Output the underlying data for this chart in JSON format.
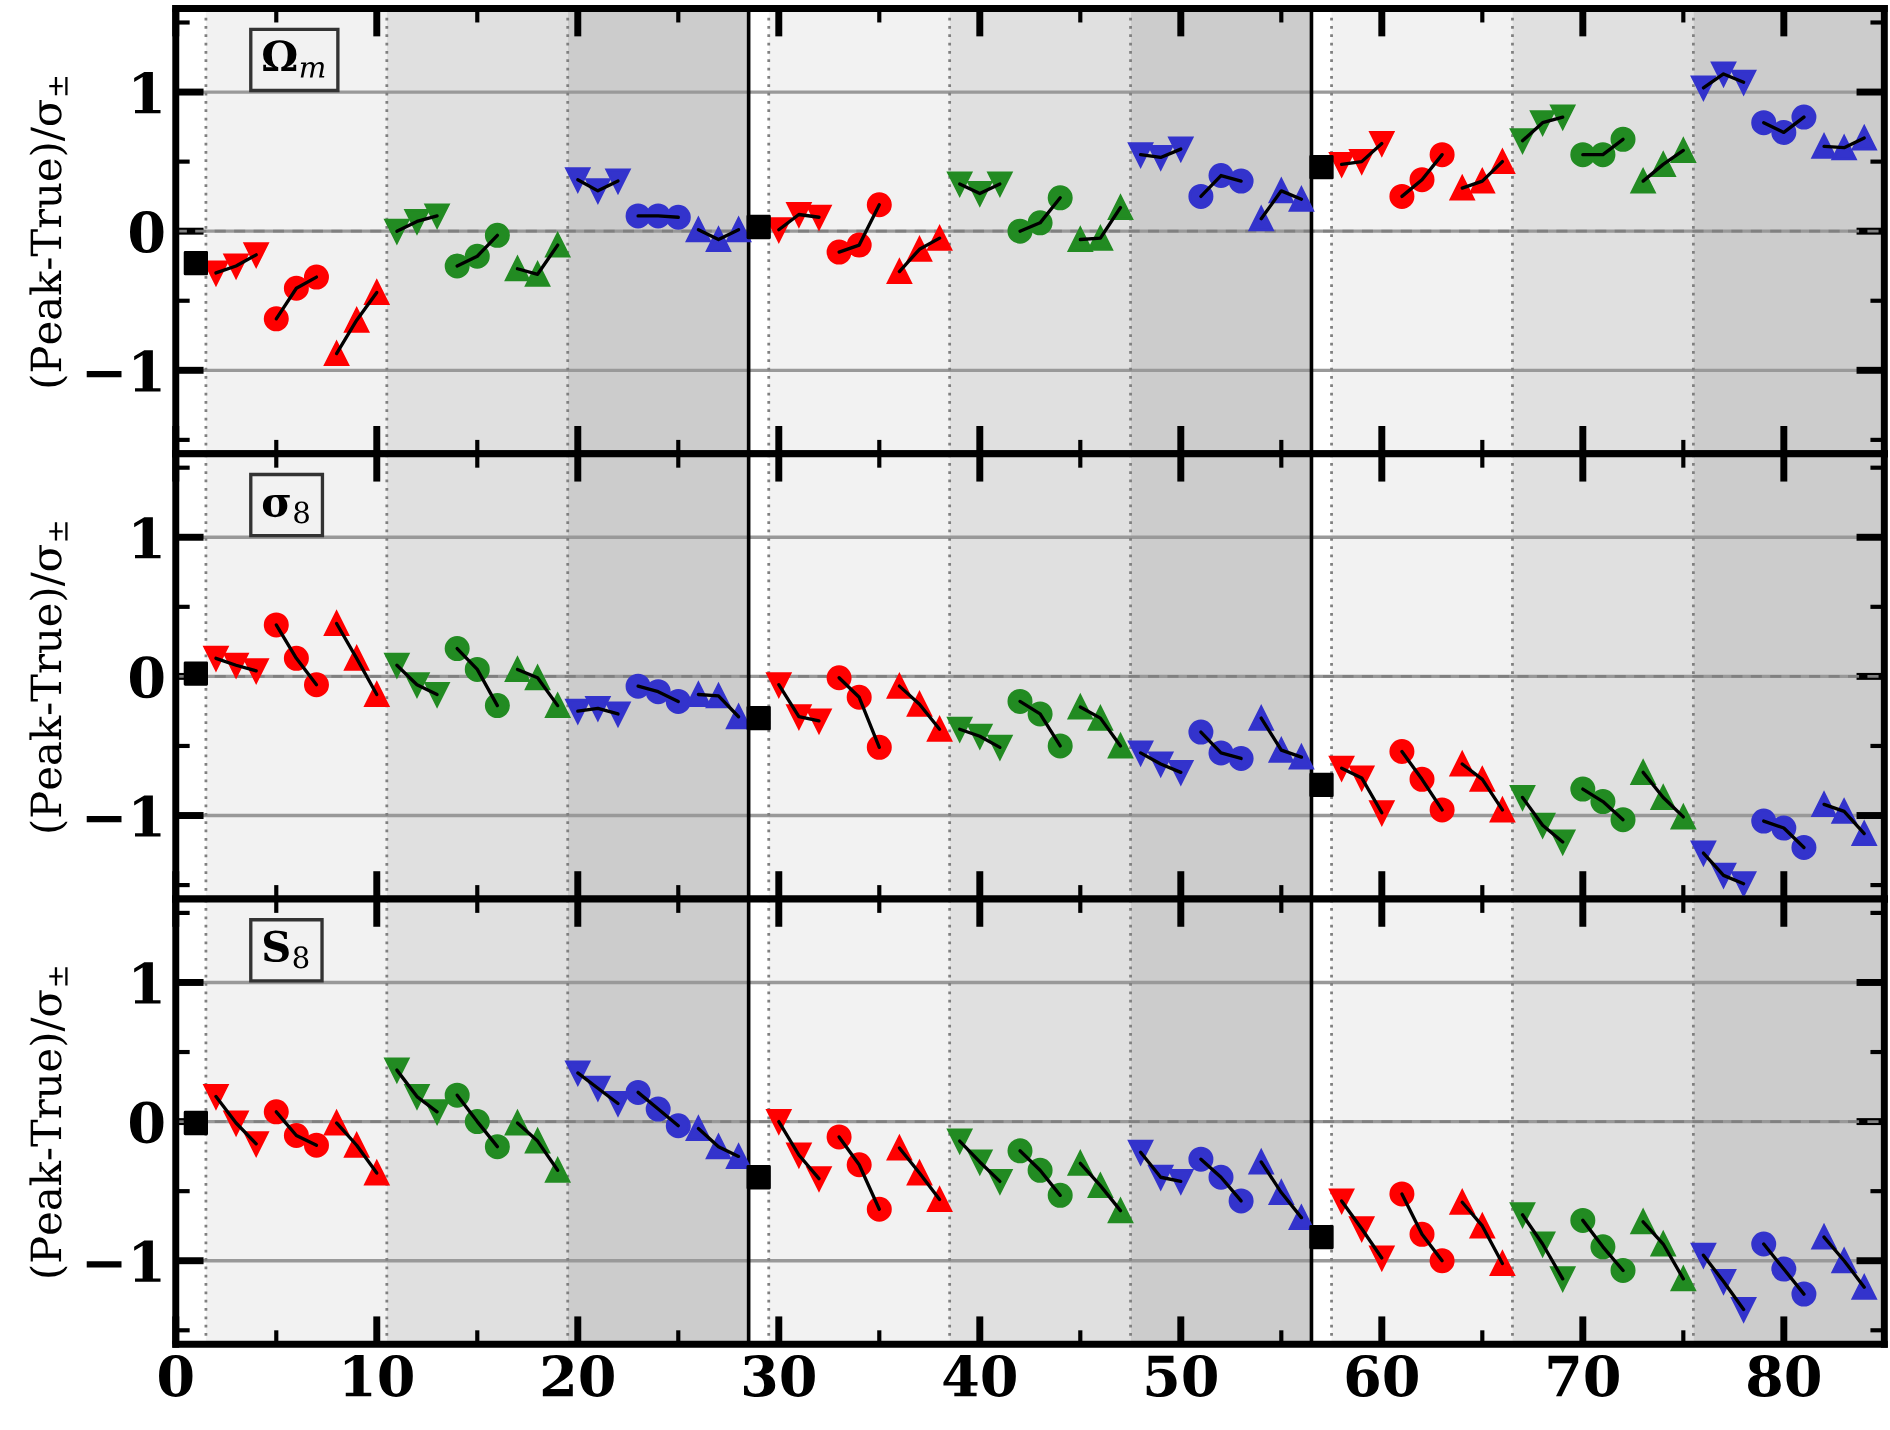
{
  "chart_data": [
    {
      "type": "line",
      "ylabel": "(Peak-True)/σ$_{±}$",
      "annotations": [
        "Ω$_{m}$"
      ],
      "xlim": [
        0,
        85
      ],
      "ylim": [
        -1.6,
        1.6
      ],
      "tick_labels": "y",
      "grid": "y",
      "legend": false,
      "xticks": [
        0,
        {
          "value": 5,
          "label": null
        },
        10,
        {
          "value": 15,
          "label": null
        },
        20,
        {
          "value": 25,
          "label": null
        },
        30,
        {
          "value": 35,
          "label": null
        },
        40,
        {
          "value": 45,
          "label": null
        },
        50,
        {
          "value": 55,
          "label": null
        },
        60,
        {
          "value": 65,
          "label": null
        },
        70,
        {
          "value": 75,
          "label": null
        },
        80,
        {
          "value": 85,
          "label": null
        }
      ],
      "yticks": [
        {
          "value": -1.5,
          "label": null
        },
        {
          "value": -1,
          "label": "−1"
        },
        {
          "value": -0.5,
          "label": null
        },
        0,
        {
          "value": 0.5,
          "label": null
        },
        1,
        {
          "value": 1.5,
          "label": null
        }
      ],
      "bands": [
        {
          "axis": "x",
          "from": 1.5,
          "to": 10.5,
          "color": "#f2f2f2"
        },
        {
          "axis": "x",
          "from": 10.5,
          "to": 19.5,
          "color": "#e0e0e0"
        },
        {
          "axis": "x",
          "from": 19.5,
          "to": 28.5,
          "color": "#cccccc"
        },
        {
          "axis": "x",
          "from": 29.5,
          "to": 38.5,
          "color": "#f2f2f2"
        },
        {
          "axis": "x",
          "from": 38.5,
          "to": 47.5,
          "color": "#e0e0e0"
        },
        {
          "axis": "x",
          "from": 47.5,
          "to": 56.5,
          "color": "#cccccc"
        },
        {
          "axis": "x",
          "from": 57.5,
          "to": 66.5,
          "color": "#f2f2f2"
        },
        {
          "axis": "x",
          "from": 66.5,
          "to": 75.5,
          "color": "#e0e0e0"
        },
        {
          "axis": "x",
          "from": 75.5,
          "to": 85,
          "color": "#cccccc"
        }
      ],
      "ref_lines": [
        {
          "axis": "y",
          "value": 0,
          "line_style": "dashed",
          "color": "#808080"
        },
        {
          "axis": "x",
          "value": 28.5,
          "line_style": "solid",
          "color": "#000000"
        },
        {
          "axis": "x",
          "value": 56.5,
          "line_style": "solid",
          "color": "#000000"
        },
        {
          "axis": "x",
          "value": 1.5,
          "line_style": "dotted",
          "color": "#808080"
        },
        {
          "axis": "x",
          "value": 10.5,
          "line_style": "dotted",
          "color": "#808080"
        },
        {
          "axis": "x",
          "value": 19.5,
          "line_style": "dotted",
          "color": "#808080"
        },
        {
          "axis": "x",
          "value": 29.5,
          "line_style": "dotted",
          "color": "#808080"
        },
        {
          "axis": "x",
          "value": 38.5,
          "line_style": "dotted",
          "color": "#808080"
        },
        {
          "axis": "x",
          "value": 47.5,
          "line_style": "dotted",
          "color": "#808080"
        },
        {
          "axis": "x",
          "value": 57.5,
          "line_style": "dotted",
          "color": "#808080"
        },
        {
          "axis": "x",
          "value": 66.5,
          "line_style": "dotted",
          "color": "#808080"
        },
        {
          "axis": "x",
          "value": 75.5,
          "line_style": "dotted",
          "color": "#808080"
        }
      ],
      "series": [
        {
          "type": "scatter",
          "marker": "square",
          "color": "#000000",
          "x": [
            1,
            29,
            57
          ],
          "values": [
            -0.23,
            0.03,
            0.46
          ]
        },
        {
          "marker": "triangle_down",
          "color": "#ff0000",
          "x": [
            2,
            3,
            4
          ],
          "values": [
            -0.3,
            -0.25,
            -0.17
          ]
        },
        {
          "marker": "circle",
          "color": "#ff0000",
          "x": [
            5,
            6,
            7
          ],
          "values": [
            -0.63,
            -0.41,
            -0.33
          ]
        },
        {
          "marker": "triangle",
          "color": "#ff0000",
          "x": [
            8,
            9,
            10
          ],
          "values": [
            -0.88,
            -0.64,
            -0.44
          ]
        },
        {
          "marker": "triangle_down",
          "color": "#228b22",
          "x": [
            11,
            12,
            13
          ],
          "values": [
            0.0,
            0.07,
            0.11
          ]
        },
        {
          "marker": "circle",
          "color": "#228b22",
          "x": [
            14,
            15,
            16
          ],
          "values": [
            -0.25,
            -0.18,
            -0.03
          ]
        },
        {
          "marker": "triangle",
          "color": "#228b22",
          "x": [
            17,
            18,
            19
          ],
          "values": [
            -0.27,
            -0.31,
            -0.1
          ]
        },
        {
          "marker": "triangle_down",
          "color": "#3333cc",
          "x": [
            20,
            21,
            22
          ],
          "values": [
            0.37,
            0.29,
            0.36
          ]
        },
        {
          "marker": "circle",
          "color": "#3333cc",
          "x": [
            23,
            24,
            25
          ],
          "values": [
            0.11,
            0.11,
            0.1
          ]
        },
        {
          "marker": "triangle",
          "color": "#3333cc",
          "x": [
            26,
            27,
            28
          ],
          "values": [
            0.01,
            -0.06,
            0.01
          ]
        },
        {
          "marker": "triangle_down",
          "color": "#ff0000",
          "x": [
            30,
            31,
            32
          ],
          "values": [
            0.01,
            0.12,
            0.1
          ]
        },
        {
          "marker": "circle",
          "color": "#ff0000",
          "x": [
            33,
            34,
            35
          ],
          "values": [
            -0.15,
            -0.1,
            0.19
          ]
        },
        {
          "marker": "triangle",
          "color": "#ff0000",
          "x": [
            36,
            37,
            38
          ],
          "values": [
            -0.29,
            -0.13,
            -0.05
          ]
        },
        {
          "marker": "triangle_down",
          "color": "#228b22",
          "x": [
            39,
            40,
            41
          ],
          "values": [
            0.34,
            0.27,
            0.34
          ]
        },
        {
          "marker": "circle",
          "color": "#228b22",
          "x": [
            42,
            43,
            44
          ],
          "values": [
            0.0,
            0.06,
            0.24
          ]
        },
        {
          "marker": "triangle",
          "color": "#228b22",
          "x": [
            45,
            46,
            47
          ],
          "values": [
            -0.06,
            -0.05,
            0.17
          ]
        },
        {
          "marker": "triangle_down",
          "color": "#3333cc",
          "x": [
            48,
            49,
            50
          ],
          "values": [
            0.55,
            0.53,
            0.59
          ]
        },
        {
          "marker": "circle",
          "color": "#3333cc",
          "x": [
            51,
            52,
            53
          ],
          "values": [
            0.25,
            0.4,
            0.36
          ]
        },
        {
          "marker": "triangle",
          "color": "#3333cc",
          "x": [
            54,
            55,
            56
          ],
          "values": [
            0.09,
            0.29,
            0.23
          ]
        },
        {
          "marker": "triangle_down",
          "color": "#ff0000",
          "x": [
            58,
            59,
            60
          ],
          "values": [
            0.48,
            0.5,
            0.63
          ]
        },
        {
          "marker": "circle",
          "color": "#ff0000",
          "x": [
            61,
            62,
            63
          ],
          "values": [
            0.25,
            0.37,
            0.55
          ]
        },
        {
          "marker": "triangle",
          "color": "#ff0000",
          "x": [
            64,
            65,
            66
          ],
          "values": [
            0.31,
            0.36,
            0.5
          ]
        },
        {
          "marker": "triangle_down",
          "color": "#228b22",
          "x": [
            67,
            68,
            69
          ],
          "values": [
            0.65,
            0.78,
            0.82
          ]
        },
        {
          "marker": "circle",
          "color": "#228b22",
          "x": [
            70,
            71,
            72
          ],
          "values": [
            0.55,
            0.55,
            0.66
          ]
        },
        {
          "marker": "triangle",
          "color": "#228b22",
          "x": [
            73,
            74,
            75
          ],
          "values": [
            0.36,
            0.48,
            0.58
          ]
        },
        {
          "marker": "triangle_down",
          "color": "#3333cc",
          "x": [
            76,
            77,
            78
          ],
          "values": [
            1.03,
            1.13,
            1.07
          ]
        },
        {
          "marker": "circle",
          "color": "#3333cc",
          "x": [
            79,
            80,
            81
          ],
          "values": [
            0.78,
            0.71,
            0.82
          ]
        },
        {
          "marker": "triangle",
          "color": "#3333cc",
          "x": [
            82,
            83,
            84
          ],
          "values": [
            0.61,
            0.6,
            0.67
          ]
        }
      ]
    },
    {
      "type": "line",
      "ylabel": "(Peak-True)/σ$_{±}$",
      "annotations": [
        "σ$_{8}$"
      ],
      "xlim": [
        0,
        85
      ],
      "ylim": [
        -1.6,
        1.6
      ],
      "tick_labels": "y",
      "grid": "y",
      "legend": false,
      "xticks": [
        0,
        {
          "value": 5,
          "label": null
        },
        10,
        {
          "value": 15,
          "label": null
        },
        20,
        {
          "value": 25,
          "label": null
        },
        30,
        {
          "value": 35,
          "label": null
        },
        40,
        {
          "value": 45,
          "label": null
        },
        50,
        {
          "value": 55,
          "label": null
        },
        60,
        {
          "value": 65,
          "label": null
        },
        70,
        {
          "value": 75,
          "label": null
        },
        80,
        {
          "value": 85,
          "label": null
        }
      ],
      "yticks": [
        {
          "value": -1.5,
          "label": null
        },
        {
          "value": -1,
          "label": "−1"
        },
        {
          "value": -0.5,
          "label": null
        },
        0,
        {
          "value": 0.5,
          "label": null
        },
        1,
        {
          "value": 1.5,
          "label": null
        }
      ],
      "bands": [
        {
          "axis": "x",
          "from": 1.5,
          "to": 10.5,
          "color": "#f2f2f2"
        },
        {
          "axis": "x",
          "from": 10.5,
          "to": 19.5,
          "color": "#e0e0e0"
        },
        {
          "axis": "x",
          "from": 19.5,
          "to": 28.5,
          "color": "#cccccc"
        },
        {
          "axis": "x",
          "from": 29.5,
          "to": 38.5,
          "color": "#f2f2f2"
        },
        {
          "axis": "x",
          "from": 38.5,
          "to": 47.5,
          "color": "#e0e0e0"
        },
        {
          "axis": "x",
          "from": 47.5,
          "to": 56.5,
          "color": "#cccccc"
        },
        {
          "axis": "x",
          "from": 57.5,
          "to": 66.5,
          "color": "#f2f2f2"
        },
        {
          "axis": "x",
          "from": 66.5,
          "to": 75.5,
          "color": "#e0e0e0"
        },
        {
          "axis": "x",
          "from": 75.5,
          "to": 85,
          "color": "#cccccc"
        }
      ],
      "ref_lines": [
        {
          "axis": "y",
          "value": 0,
          "line_style": "dashed",
          "color": "#808080"
        },
        {
          "axis": "x",
          "value": 28.5,
          "line_style": "solid",
          "color": "#000000"
        },
        {
          "axis": "x",
          "value": 56.5,
          "line_style": "solid",
          "color": "#000000"
        },
        {
          "axis": "x",
          "value": 1.5,
          "line_style": "dotted",
          "color": "#808080"
        },
        {
          "axis": "x",
          "value": 10.5,
          "line_style": "dotted",
          "color": "#808080"
        },
        {
          "axis": "x",
          "value": 19.5,
          "line_style": "dotted",
          "color": "#808080"
        },
        {
          "axis": "x",
          "value": 29.5,
          "line_style": "dotted",
          "color": "#808080"
        },
        {
          "axis": "x",
          "value": 38.5,
          "line_style": "dotted",
          "color": "#808080"
        },
        {
          "axis": "x",
          "value": 47.5,
          "line_style": "dotted",
          "color": "#808080"
        },
        {
          "axis": "x",
          "value": 57.5,
          "line_style": "dotted",
          "color": "#808080"
        },
        {
          "axis": "x",
          "value": 66.5,
          "line_style": "dotted",
          "color": "#808080"
        },
        {
          "axis": "x",
          "value": 75.5,
          "line_style": "dotted",
          "color": "#808080"
        }
      ],
      "series": [
        {
          "type": "scatter",
          "marker": "square",
          "color": "#000000",
          "x": [
            1,
            29,
            57
          ],
          "values": [
            0.02,
            -0.3,
            -0.78
          ]
        },
        {
          "marker": "triangle_down",
          "color": "#ff0000",
          "x": [
            2,
            3,
            4
          ],
          "values": [
            0.13,
            0.08,
            0.04
          ]
        },
        {
          "marker": "circle",
          "color": "#ff0000",
          "x": [
            5,
            6,
            7
          ],
          "values": [
            0.37,
            0.13,
            -0.06
          ]
        },
        {
          "marker": "triangle",
          "color": "#ff0000",
          "x": [
            8,
            9,
            10
          ],
          "values": [
            0.38,
            0.13,
            -0.13
          ]
        },
        {
          "marker": "triangle_down",
          "color": "#228b22",
          "x": [
            11,
            12,
            13
          ],
          "values": [
            0.08,
            -0.06,
            -0.13
          ]
        },
        {
          "marker": "circle",
          "color": "#228b22",
          "x": [
            14,
            15,
            16
          ],
          "values": [
            0.2,
            0.05,
            -0.21
          ]
        },
        {
          "marker": "triangle",
          "color": "#228b22",
          "x": [
            17,
            18,
            19
          ],
          "values": [
            0.05,
            -0.01,
            -0.21
          ]
        },
        {
          "marker": "triangle_down",
          "color": "#3333cc",
          "x": [
            20,
            21,
            22
          ],
          "values": [
            -0.25,
            -0.23,
            -0.27
          ]
        },
        {
          "marker": "circle",
          "color": "#3333cc",
          "x": [
            23,
            24,
            25
          ],
          "values": [
            -0.07,
            -0.11,
            -0.18
          ]
        },
        {
          "marker": "triangle",
          "color": "#3333cc",
          "x": [
            26,
            27,
            28
          ],
          "values": [
            -0.13,
            -0.14,
            -0.29
          ]
        },
        {
          "marker": "triangle_down",
          "color": "#ff0000",
          "x": [
            30,
            31,
            32
          ],
          "values": [
            -0.06,
            -0.29,
            -0.32
          ]
        },
        {
          "marker": "circle",
          "color": "#ff0000",
          "x": [
            33,
            34,
            35
          ],
          "values": [
            -0.01,
            -0.15,
            -0.51
          ]
        },
        {
          "marker": "triangle",
          "color": "#ff0000",
          "x": [
            36,
            37,
            38
          ],
          "values": [
            -0.07,
            -0.2,
            -0.38
          ]
        },
        {
          "marker": "triangle_down",
          "color": "#228b22",
          "x": [
            39,
            40,
            41
          ],
          "values": [
            -0.38,
            -0.43,
            -0.51
          ]
        },
        {
          "marker": "circle",
          "color": "#228b22",
          "x": [
            42,
            43,
            44
          ],
          "values": [
            -0.18,
            -0.27,
            -0.5
          ]
        },
        {
          "marker": "triangle",
          "color": "#228b22",
          "x": [
            45,
            46,
            47
          ],
          "values": [
            -0.22,
            -0.3,
            -0.5
          ]
        },
        {
          "marker": "triangle_down",
          "color": "#3333cc",
          "x": [
            48,
            49,
            50
          ],
          "values": [
            -0.55,
            -0.63,
            -0.69
          ]
        },
        {
          "marker": "circle",
          "color": "#3333cc",
          "x": [
            51,
            52,
            53
          ],
          "values": [
            -0.4,
            -0.55,
            -0.59
          ]
        },
        {
          "marker": "triangle",
          "color": "#3333cc",
          "x": [
            54,
            55,
            56
          ],
          "values": [
            -0.3,
            -0.53,
            -0.58
          ]
        },
        {
          "marker": "triangle_down",
          "color": "#ff0000",
          "x": [
            58,
            59,
            60
          ],
          "values": [
            -0.66,
            -0.73,
            -0.98
          ]
        },
        {
          "marker": "circle",
          "color": "#ff0000",
          "x": [
            61,
            62,
            63
          ],
          "values": [
            -0.54,
            -0.74,
            -0.96
          ]
        },
        {
          "marker": "triangle",
          "color": "#ff0000",
          "x": [
            64,
            65,
            66
          ],
          "values": [
            -0.63,
            -0.74,
            -0.96
          ]
        },
        {
          "marker": "triangle_down",
          "color": "#228b22",
          "x": [
            67,
            68,
            69
          ],
          "values": [
            -0.87,
            -1.07,
            -1.19
          ]
        },
        {
          "marker": "circle",
          "color": "#228b22",
          "x": [
            70,
            71,
            72
          ],
          "values": [
            -0.81,
            -0.9,
            -1.03
          ]
        },
        {
          "marker": "triangle",
          "color": "#228b22",
          "x": [
            73,
            74,
            75
          ],
          "values": [
            -0.69,
            -0.87,
            -1.01
          ]
        },
        {
          "marker": "triangle_down",
          "color": "#3333cc",
          "x": [
            76,
            77,
            78
          ],
          "values": [
            -1.27,
            -1.43,
            -1.49
          ]
        },
        {
          "marker": "circle",
          "color": "#3333cc",
          "x": [
            79,
            80,
            81
          ],
          "values": [
            -1.04,
            -1.09,
            -1.23
          ]
        },
        {
          "marker": "triangle",
          "color": "#3333cc",
          "x": [
            82,
            83,
            84
          ],
          "values": [
            -0.92,
            -0.97,
            -1.13
          ]
        }
      ]
    },
    {
      "type": "line",
      "ylabel": "(Peak-True)/σ$_{±}$",
      "annotations": [
        "S$_{8}$"
      ],
      "xlim": [
        0,
        85
      ],
      "ylim": [
        -1.6,
        1.6
      ],
      "grid": "y",
      "legend": false,
      "xticks": [
        0,
        {
          "value": 5,
          "label": null
        },
        10,
        {
          "value": 15,
          "label": null
        },
        20,
        {
          "value": 25,
          "label": null
        },
        30,
        {
          "value": 35,
          "label": null
        },
        40,
        {
          "value": 45,
          "label": null
        },
        50,
        {
          "value": 55,
          "label": null
        },
        60,
        {
          "value": 65,
          "label": null
        },
        70,
        {
          "value": 75,
          "label": null
        },
        80,
        {
          "value": 85,
          "label": null
        }
      ],
      "yticks": [
        {
          "value": -1.5,
          "label": null
        },
        {
          "value": -1,
          "label": "−1"
        },
        {
          "value": -0.5,
          "label": null
        },
        0,
        {
          "value": 0.5,
          "label": null
        },
        1,
        {
          "value": 1.5,
          "label": null
        }
      ],
      "bands": [
        {
          "axis": "x",
          "from": 1.5,
          "to": 10.5,
          "color": "#f2f2f2"
        },
        {
          "axis": "x",
          "from": 10.5,
          "to": 19.5,
          "color": "#e0e0e0"
        },
        {
          "axis": "x",
          "from": 19.5,
          "to": 28.5,
          "color": "#cccccc"
        },
        {
          "axis": "x",
          "from": 29.5,
          "to": 38.5,
          "color": "#f2f2f2"
        },
        {
          "axis": "x",
          "from": 38.5,
          "to": 47.5,
          "color": "#e0e0e0"
        },
        {
          "axis": "x",
          "from": 47.5,
          "to": 56.5,
          "color": "#cccccc"
        },
        {
          "axis": "x",
          "from": 57.5,
          "to": 66.5,
          "color": "#f2f2f2"
        },
        {
          "axis": "x",
          "from": 66.5,
          "to": 75.5,
          "color": "#e0e0e0"
        },
        {
          "axis": "x",
          "from": 75.5,
          "to": 85,
          "color": "#cccccc"
        }
      ],
      "ref_lines": [
        {
          "axis": "y",
          "value": 0,
          "line_style": "dashed",
          "color": "#808080"
        },
        {
          "axis": "x",
          "value": 28.5,
          "line_style": "solid",
          "color": "#000000"
        },
        {
          "axis": "x",
          "value": 56.5,
          "line_style": "solid",
          "color": "#000000"
        },
        {
          "axis": "x",
          "value": 1.5,
          "line_style": "dotted",
          "color": "#808080"
        },
        {
          "axis": "x",
          "value": 10.5,
          "line_style": "dotted",
          "color": "#808080"
        },
        {
          "axis": "x",
          "value": 19.5,
          "line_style": "dotted",
          "color": "#808080"
        },
        {
          "axis": "x",
          "value": 29.5,
          "line_style": "dotted",
          "color": "#808080"
        },
        {
          "axis": "x",
          "value": 38.5,
          "line_style": "dotted",
          "color": "#808080"
        },
        {
          "axis": "x",
          "value": 47.5,
          "line_style": "dotted",
          "color": "#808080"
        },
        {
          "axis": "x",
          "value": 57.5,
          "line_style": "dotted",
          "color": "#808080"
        },
        {
          "axis": "x",
          "value": 66.5,
          "line_style": "dotted",
          "color": "#808080"
        },
        {
          "axis": "x",
          "value": 75.5,
          "line_style": "dotted",
          "color": "#808080"
        }
      ],
      "series": [
        {
          "type": "scatter",
          "marker": "square",
          "color": "#000000",
          "x": [
            1,
            29,
            57
          ],
          "values": [
            -0.01,
            -0.4,
            -0.83
          ]
        },
        {
          "marker": "triangle_down",
          "color": "#ff0000",
          "x": [
            2,
            3,
            4
          ],
          "values": [
            0.18,
            -0.01,
            -0.16
          ]
        },
        {
          "marker": "circle",
          "color": "#ff0000",
          "x": [
            5,
            6,
            7
          ],
          "values": [
            0.07,
            -0.1,
            -0.17
          ]
        },
        {
          "marker": "triangle",
          "color": "#ff0000",
          "x": [
            8,
            9,
            10
          ],
          "values": [
            -0.01,
            -0.17,
            -0.37
          ]
        },
        {
          "marker": "triangle_down",
          "color": "#228b22",
          "x": [
            11,
            12,
            13
          ],
          "values": [
            0.37,
            0.18,
            0.07
          ]
        },
        {
          "marker": "circle",
          "color": "#228b22",
          "x": [
            14,
            15,
            16
          ],
          "values": [
            0.19,
            0.0,
            -0.18
          ]
        },
        {
          "marker": "triangle",
          "color": "#228b22",
          "x": [
            17,
            18,
            19
          ],
          "values": [
            -0.01,
            -0.14,
            -0.35
          ]
        },
        {
          "marker": "triangle_down",
          "color": "#3333cc",
          "x": [
            20,
            21,
            22
          ],
          "values": [
            0.35,
            0.24,
            0.13
          ]
        },
        {
          "marker": "circle",
          "color": "#3333cc",
          "x": [
            23,
            24,
            25
          ],
          "values": [
            0.21,
            0.09,
            -0.03
          ]
        },
        {
          "marker": "triangle",
          "color": "#3333cc",
          "x": [
            26,
            27,
            28
          ],
          "values": [
            -0.05,
            -0.18,
            -0.25
          ]
        },
        {
          "marker": "triangle_down",
          "color": "#ff0000",
          "x": [
            30,
            31,
            32
          ],
          "values": [
            0.0,
            -0.24,
            -0.41
          ]
        },
        {
          "marker": "circle",
          "color": "#ff0000",
          "x": [
            33,
            34,
            35
          ],
          "values": [
            -0.11,
            -0.31,
            -0.63
          ]
        },
        {
          "marker": "triangle",
          "color": "#ff0000",
          "x": [
            36,
            37,
            38
          ],
          "values": [
            -0.19,
            -0.37,
            -0.56
          ]
        },
        {
          "marker": "triangle_down",
          "color": "#228b22",
          "x": [
            39,
            40,
            41
          ],
          "values": [
            -0.14,
            -0.29,
            -0.43
          ]
        },
        {
          "marker": "circle",
          "color": "#228b22",
          "x": [
            42,
            43,
            44
          ],
          "values": [
            -0.21,
            -0.35,
            -0.53
          ]
        },
        {
          "marker": "triangle",
          "color": "#228b22",
          "x": [
            45,
            46,
            47
          ],
          "values": [
            -0.3,
            -0.46,
            -0.64
          ]
        },
        {
          "marker": "triangle_down",
          "color": "#3333cc",
          "x": [
            48,
            49,
            50
          ],
          "values": [
            -0.22,
            -0.4,
            -0.43
          ]
        },
        {
          "marker": "circle",
          "color": "#3333cc",
          "x": [
            51,
            52,
            53
          ],
          "values": [
            -0.27,
            -0.4,
            -0.57
          ]
        },
        {
          "marker": "triangle",
          "color": "#3333cc",
          "x": [
            54,
            55,
            56
          ],
          "values": [
            -0.29,
            -0.51,
            -0.69
          ]
        },
        {
          "marker": "triangle_down",
          "color": "#ff0000",
          "x": [
            58,
            59,
            60
          ],
          "values": [
            -0.57,
            -0.77,
            -0.98
          ]
        },
        {
          "marker": "circle",
          "color": "#ff0000",
          "x": [
            61,
            62,
            63
          ],
          "values": [
            -0.52,
            -0.81,
            -1.0
          ]
        },
        {
          "marker": "triangle",
          "color": "#ff0000",
          "x": [
            64,
            65,
            66
          ],
          "values": [
            -0.58,
            -0.75,
            -1.02
          ]
        },
        {
          "marker": "triangle_down",
          "color": "#228b22",
          "x": [
            67,
            68,
            69
          ],
          "values": [
            -0.67,
            -0.88,
            -1.13
          ]
        },
        {
          "marker": "circle",
          "color": "#228b22",
          "x": [
            70,
            71,
            72
          ],
          "values": [
            -0.71,
            -0.9,
            -1.07
          ]
        },
        {
          "marker": "triangle",
          "color": "#228b22",
          "x": [
            73,
            74,
            75
          ],
          "values": [
            -0.72,
            -0.88,
            -1.13
          ]
        },
        {
          "marker": "triangle_down",
          "color": "#3333cc",
          "x": [
            76,
            77,
            78
          ],
          "values": [
            -0.96,
            -1.15,
            -1.35
          ]
        },
        {
          "marker": "circle",
          "color": "#3333cc",
          "x": [
            79,
            80,
            81
          ],
          "values": [
            -0.88,
            -1.06,
            -1.24
          ]
        },
        {
          "marker": "triangle",
          "color": "#3333cc",
          "x": [
            82,
            83,
            84
          ],
          "values": [
            -0.83,
            -1.0,
            -1.19
          ]
        }
      ]
    }
  ]
}
